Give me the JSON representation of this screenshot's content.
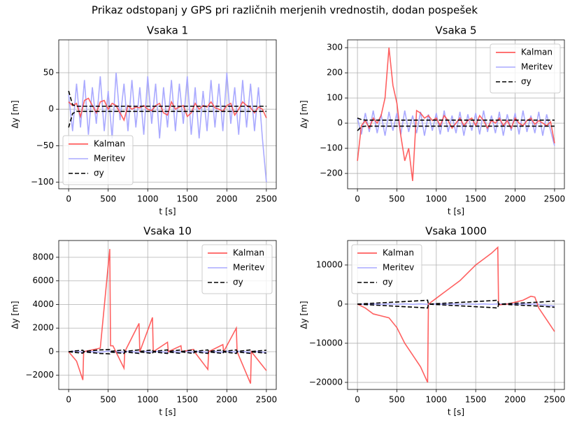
{
  "title": "Prikaz odstopanj y GPS pri različnih merjenih vrednostih, dodan pospešek",
  "chart_data": [
    {
      "type": "line",
      "title": "Vsaka 1",
      "xlabel": "t [s]",
      "ylabel": "Δy [m]",
      "grid": true,
      "legend": "lower left",
      "xlim": [
        -125,
        2625
      ],
      "ylim": [
        -109,
        95
      ],
      "xticks": [
        0,
        500,
        1000,
        1500,
        2000,
        2500
      ],
      "yticks": [
        {
          "value": -100,
          "label": "−100"
        },
        {
          "value": -50,
          "label": "−50"
        },
        0,
        50
      ],
      "x": [
        0,
        50,
        100,
        150,
        200,
        250,
        300,
        350,
        400,
        450,
        500,
        550,
        600,
        650,
        700,
        750,
        800,
        850,
        900,
        950,
        1000,
        1050,
        1100,
        1150,
        1200,
        1250,
        1300,
        1350,
        1400,
        1450,
        1500,
        1550,
        1600,
        1650,
        1700,
        1750,
        1800,
        1850,
        1900,
        1950,
        2000,
        2050,
        2100,
        2150,
        2200,
        2250,
        2300,
        2350,
        2400,
        2450,
        2500
      ],
      "series": [
        {
          "name": "Kalman",
          "color": "#ff4444",
          "style": "solid",
          "values": [
            10,
            5,
            8,
            -10,
            12,
            15,
            5,
            -5,
            10,
            12,
            0,
            8,
            5,
            -5,
            -15,
            5,
            0,
            3,
            2,
            5,
            0,
            -2,
            5,
            8,
            -5,
            -8,
            10,
            0,
            3,
            5,
            -10,
            -5,
            8,
            0,
            5,
            3,
            10,
            2,
            0,
            -3,
            5,
            8,
            -8,
            0,
            10,
            5,
            2,
            -5,
            3,
            0,
            -12
          ]
        },
        {
          "name": "Meritev",
          "color": "#aaaaff",
          "style": "solid",
          "values": [
            20,
            -30,
            35,
            -25,
            40,
            -35,
            30,
            -20,
            45,
            -30,
            25,
            -40,
            50,
            -15,
            35,
            -30,
            40,
            -25,
            30,
            -35,
            45,
            -20,
            35,
            -40,
            30,
            -25,
            40,
            -30,
            35,
            -20,
            45,
            -35,
            30,
            -40,
            25,
            -30,
            40,
            -25,
            35,
            -30,
            50,
            -20,
            30,
            -35,
            40,
            -25,
            35,
            -30,
            30,
            -40,
            -100
          ]
        },
        {
          "name": "σy",
          "color": "#000000",
          "style": "dashed",
          "values": [
            25,
            6,
            4,
            4,
            4,
            4,
            4,
            4,
            4,
            4,
            4,
            4,
            4,
            4,
            4,
            4,
            4,
            4,
            4,
            4,
            4,
            4,
            4,
            4,
            4,
            4,
            4,
            4,
            4,
            4,
            4,
            4,
            4,
            4,
            4,
            4,
            4,
            4,
            4,
            4,
            4,
            4,
            4,
            4,
            4,
            4,
            4,
            4,
            4,
            4,
            4
          ],
          "lower": [
            -25,
            -6,
            -3,
            -3,
            -3,
            -3,
            -3,
            -3,
            -3,
            -3,
            -3,
            -3,
            -3,
            -3,
            -3,
            -3,
            -3,
            -3,
            -3,
            -3,
            -3,
            -3,
            -3,
            -3,
            -3,
            -3,
            -3,
            -3,
            -3,
            -3,
            -3,
            -3,
            -3,
            -3,
            -3,
            -3,
            -3,
            -3,
            -3,
            -3,
            -3,
            -3,
            -3,
            -3,
            -3,
            -3,
            -3,
            -3,
            -3,
            -3,
            -3
          ]
        }
      ]
    },
    {
      "type": "line",
      "title": "Vsaka 5",
      "xlabel": "t [s]",
      "ylabel": "Δy [m]",
      "grid": true,
      "legend": "upper right",
      "xlim": [
        -125,
        2625
      ],
      "ylim": [
        -261,
        331
      ],
      "xticks": [
        0,
        500,
        1000,
        1500,
        2000,
        2500
      ],
      "yticks": [
        {
          "value": -200,
          "label": "−200"
        },
        {
          "value": -100,
          "label": "−100"
        },
        0,
        100,
        200,
        300
      ],
      "x": [
        0,
        50,
        100,
        150,
        200,
        250,
        300,
        350,
        400,
        450,
        500,
        550,
        600,
        650,
        700,
        750,
        800,
        850,
        900,
        950,
        1000,
        1050,
        1100,
        1150,
        1200,
        1250,
        1300,
        1350,
        1400,
        1450,
        1500,
        1550,
        1600,
        1650,
        1700,
        1750,
        1800,
        1850,
        1900,
        1950,
        2000,
        2050,
        2100,
        2150,
        2200,
        2250,
        2300,
        2350,
        2400,
        2450,
        2500
      ],
      "series": [
        {
          "name": "Kalman",
          "color": "#ff4444",
          "style": "solid",
          "values": [
            -150,
            -10,
            10,
            -20,
            20,
            0,
            30,
            100,
            300,
            150,
            80,
            -50,
            -150,
            -100,
            -230,
            50,
            40,
            20,
            30,
            10,
            20,
            -10,
            30,
            10,
            -20,
            0,
            20,
            -10,
            10,
            20,
            -10,
            30,
            10,
            -20,
            10,
            0,
            20,
            -10,
            10,
            -20,
            20,
            0,
            -10,
            10,
            20,
            -5,
            10,
            0,
            -10,
            5,
            -80
          ]
        },
        {
          "name": "Meritev",
          "color": "#aaaaff",
          "style": "solid",
          "values": [
            20,
            -45,
            40,
            -35,
            50,
            -40,
            35,
            -50,
            45,
            -30,
            40,
            -45,
            50,
            -35,
            30,
            -40,
            45,
            -50,
            35,
            -30,
            40,
            -45,
            50,
            -35,
            30,
            -40,
            45,
            -50,
            35,
            -30,
            40,
            -45,
            50,
            -35,
            30,
            -40,
            45,
            -50,
            35,
            -30,
            40,
            -45,
            50,
            -35,
            30,
            -40,
            45,
            -50,
            35,
            -30,
            -90
          ]
        },
        {
          "name": "σy",
          "color": "#000000",
          "style": "dashed",
          "values": [
            20,
            14,
            12,
            12,
            12,
            12,
            12,
            12,
            12,
            12,
            12,
            12,
            12,
            12,
            12,
            12,
            12,
            12,
            12,
            12,
            12,
            12,
            12,
            12,
            12,
            12,
            12,
            12,
            12,
            12,
            12,
            12,
            12,
            12,
            12,
            12,
            12,
            12,
            12,
            12,
            12,
            12,
            12,
            12,
            12,
            12,
            12,
            12,
            12,
            12,
            12
          ],
          "lower": [
            -30,
            -14,
            -12,
            -12,
            -12,
            -12,
            -12,
            -12,
            -12,
            -12,
            -12,
            -12,
            -12,
            -12,
            -12,
            -12,
            -12,
            -12,
            -12,
            -12,
            -12,
            -12,
            -12,
            -12,
            -12,
            -12,
            -12,
            -12,
            -12,
            -12,
            -12,
            -12,
            -12,
            -12,
            -12,
            -12,
            -12,
            -12,
            -12,
            -12,
            -12,
            -12,
            -12,
            -12,
            -12,
            -12,
            -12,
            -12,
            -12,
            -12,
            -12
          ]
        }
      ]
    },
    {
      "type": "line",
      "title": "Vsaka 10",
      "xlabel": "t [s]",
      "ylabel": "Δy [m]",
      "grid": true,
      "legend": "upper right",
      "xlim": [
        -125,
        2625
      ],
      "ylim": [
        -3200,
        9420
      ],
      "xticks": [
        0,
        500,
        1000,
        1500,
        2000,
        2500
      ],
      "yticks": [
        {
          "value": -2000,
          "label": "−2000"
        },
        0,
        2000,
        4000,
        6000,
        8000
      ],
      "x": [
        0,
        100,
        180,
        190,
        400,
        520,
        530,
        560,
        700,
        710,
        890,
        900,
        1060,
        1070,
        1250,
        1260,
        1420,
        1430,
        1580,
        1590,
        1760,
        1770,
        1950,
        1960,
        2120,
        2130,
        2300,
        2310,
        2500
      ],
      "series": [
        {
          "name": "Kalman",
          "color": "#ff4444",
          "style": "solid",
          "values": [
            0,
            -800,
            -2400,
            0,
            300,
            8700,
            500,
            500,
            -1400,
            0,
            2400,
            0,
            2900,
            0,
            800,
            0,
            500,
            0,
            200,
            0,
            -1500,
            0,
            600,
            0,
            2000,
            0,
            -2700,
            0,
            -1600
          ]
        },
        {
          "name": "Meritev",
          "color": "#aaaaff",
          "style": "solid",
          "values": [
            0,
            50,
            -50,
            30,
            -40,
            60,
            -30,
            40,
            -50,
            30,
            -40,
            50,
            -30,
            40,
            -50,
            30,
            -40,
            50,
            -30,
            40,
            -50,
            30,
            -40,
            50,
            -30,
            40,
            -50,
            30,
            -60
          ]
        },
        {
          "name": "σy",
          "color": "#000000",
          "style": "dashed",
          "values": [
            0,
            80,
            120,
            20,
            150,
            180,
            30,
            50,
            150,
            20,
            150,
            20,
            150,
            20,
            150,
            20,
            150,
            20,
            150,
            20,
            150,
            20,
            150,
            20,
            150,
            20,
            150,
            20,
            120
          ],
          "lower": [
            0,
            -80,
            -120,
            -20,
            -150,
            -180,
            -30,
            -50,
            -150,
            -20,
            -150,
            -20,
            -150,
            -20,
            -150,
            -20,
            -150,
            -20,
            -150,
            -20,
            -150,
            -20,
            -150,
            -20,
            -150,
            -20,
            -150,
            -20,
            -120
          ]
        }
      ]
    },
    {
      "type": "line",
      "title": "Vsaka 1000",
      "xlabel": "t [s]",
      "ylabel": "Δy [m]",
      "grid": true,
      "legend": "upper left",
      "xlim": [
        -125,
        2625
      ],
      "ylim": [
        -21800,
        16250
      ],
      "xticks": [
        0,
        500,
        1000,
        1500,
        2000,
        2500
      ],
      "yticks": [
        {
          "value": -20000,
          "label": "−20000"
        },
        {
          "value": -10000,
          "label": "−10000"
        },
        0,
        10000
      ],
      "x": [
        0,
        100,
        200,
        300,
        400,
        500,
        600,
        700,
        800,
        890,
        900,
        1000,
        1100,
        1200,
        1300,
        1400,
        1500,
        1600,
        1700,
        1780,
        1790,
        1900,
        2000,
        2100,
        2200,
        2250,
        2300,
        2400,
        2500
      ],
      "series": [
        {
          "name": "Kalman",
          "color": "#ff4444",
          "style": "solid",
          "values": [
            0,
            -1000,
            -2500,
            -3000,
            -3500,
            -6000,
            -10000,
            -13000,
            -16000,
            -20000,
            0,
            1500,
            3000,
            4500,
            6000,
            8000,
            10000,
            11500,
            13000,
            14500,
            -200,
            0,
            500,
            1000,
            2000,
            1800,
            -1000,
            -4000,
            -7000
          ]
        },
        {
          "name": "Meritev",
          "color": "#aaaaff",
          "style": "solid",
          "values": [
            0,
            -50,
            50,
            -50,
            50,
            -50,
            50,
            -50,
            50,
            -50,
            0,
            50,
            -50,
            50,
            -50,
            50,
            -50,
            50,
            -50,
            50,
            0,
            50,
            -50,
            50,
            -50,
            50,
            -50,
            -300,
            -500
          ]
        },
        {
          "name": "σy",
          "color": "#000000",
          "style": "dashed",
          "values": [
            0,
            110,
            220,
            330,
            440,
            550,
            660,
            770,
            880,
            1000,
            0,
            110,
            220,
            330,
            440,
            550,
            660,
            770,
            880,
            1000,
            0,
            100,
            200,
            300,
            400,
            450,
            500,
            650,
            800
          ],
          "lower": [
            0,
            -110,
            -220,
            -330,
            -440,
            -550,
            -660,
            -770,
            -880,
            -1000,
            0,
            -110,
            -220,
            -330,
            -440,
            -550,
            -660,
            -770,
            -880,
            -1000,
            0,
            -100,
            -200,
            -300,
            -400,
            -450,
            -500,
            -650,
            -800
          ]
        }
      ]
    }
  ]
}
